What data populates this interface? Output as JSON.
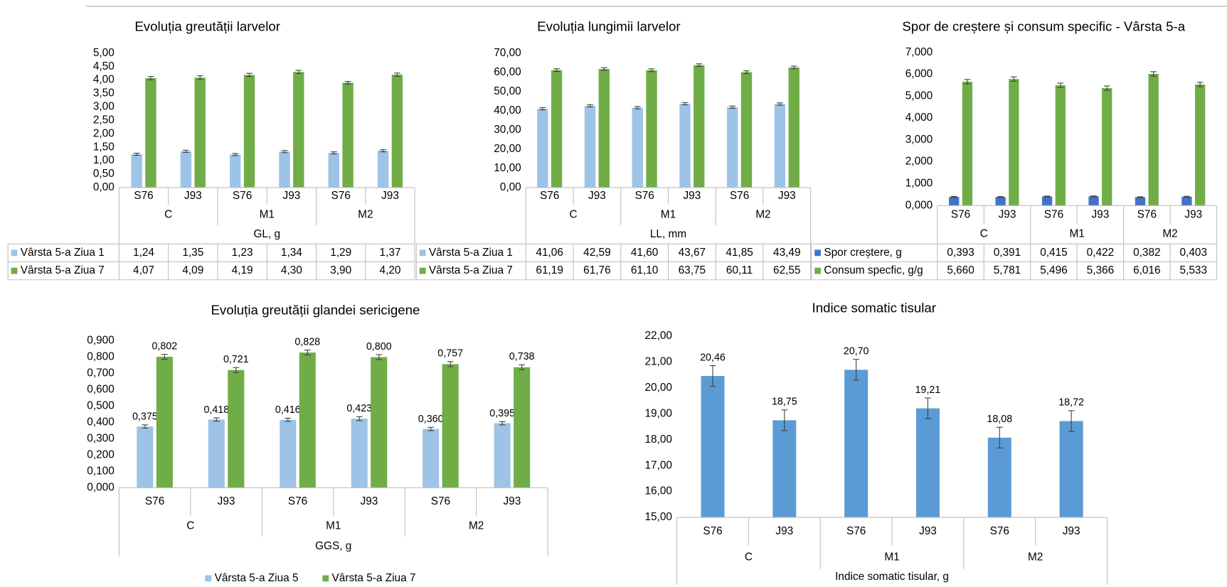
{
  "chart_data": [
    {
      "type": "bar",
      "title": "Evoluția greutății larvelor",
      "x_label": "GL, g",
      "categories": [
        "S76",
        "J93",
        "S76",
        "J93",
        "S76",
        "J93"
      ],
      "groups": [
        "C",
        "M1",
        "M2"
      ],
      "ylim": [
        0,
        5
      ],
      "yticks": [
        {
          "value": 0,
          "label": "0,00"
        },
        {
          "value": 0.5,
          "label": "0,50"
        },
        {
          "value": 1,
          "label": "1,00"
        },
        {
          "value": 1.5,
          "label": "1,50"
        },
        {
          "value": 2,
          "label": "2,00"
        },
        {
          "value": 2.5,
          "label": "2,50"
        },
        {
          "value": 3,
          "label": "3,00"
        },
        {
          "value": 3.5,
          "label": "3,50"
        },
        {
          "value": 4,
          "label": "4,00"
        },
        {
          "value": 4.5,
          "label": "4,50"
        },
        {
          "value": 5,
          "label": "5,00"
        }
      ],
      "series": [
        {
          "name": "Vârsta 5-a Ziua 1",
          "color": "#9dc3e6",
          "values": [
            1.24,
            1.35,
            1.23,
            1.34,
            1.29,
            1.37
          ],
          "value_labels": [
            "1,24",
            "1,35",
            "1,23",
            "1,34",
            "1,29",
            "1,37"
          ],
          "errors": [
            0.04,
            0.04,
            0.04,
            0.04,
            0.04,
            0.04
          ]
        },
        {
          "name": "Vârsta 5-a Ziua 7",
          "color": "#70ad47",
          "values": [
            4.07,
            4.09,
            4.19,
            4.3,
            3.9,
            4.2
          ],
          "value_labels": [
            "4,07",
            "4,09",
            "4,19",
            "4,30",
            "3,90",
            "4,20"
          ],
          "errors": [
            0.06,
            0.07,
            0.06,
            0.06,
            0.05,
            0.06
          ]
        }
      ],
      "data_table": true
    },
    {
      "type": "bar",
      "title": "Evoluția lungimii larvelor",
      "x_label": "LL, mm",
      "categories": [
        "S76",
        "J93",
        "S76",
        "J93",
        "S76",
        "J93"
      ],
      "groups": [
        "C",
        "M1",
        "M2"
      ],
      "ylim": [
        0,
        70
      ],
      "yticks": [
        {
          "value": 0,
          "label": "0,00"
        },
        {
          "value": 10,
          "label": "10,00"
        },
        {
          "value": 20,
          "label": "20,00"
        },
        {
          "value": 30,
          "label": "30,00"
        },
        {
          "value": 40,
          "label": "40,00"
        },
        {
          "value": 50,
          "label": "50,00"
        },
        {
          "value": 60,
          "label": "60,00"
        },
        {
          "value": 70,
          "label": "70,00"
        }
      ],
      "series": [
        {
          "name": "Vârsta 5-a Ziua 1",
          "color": "#9dc3e6",
          "values": [
            41.06,
            42.59,
            41.6,
            43.67,
            41.85,
            43.49
          ],
          "value_labels": [
            "41,06",
            "42,59",
            "41,60",
            "43,67",
            "41,85",
            "43,49"
          ],
          "errors": [
            0.6,
            0.6,
            0.6,
            0.6,
            0.6,
            0.6
          ]
        },
        {
          "name": "Vârsta 5-a Ziua 7",
          "color": "#70ad47",
          "values": [
            61.19,
            61.76,
            61.1,
            63.75,
            60.11,
            62.55
          ],
          "value_labels": [
            "61,19",
            "61,76",
            "61,10",
            "63,75",
            "60,11",
            "62,55"
          ],
          "errors": [
            0.7,
            0.7,
            0.7,
            0.7,
            0.7,
            0.7
          ]
        }
      ],
      "data_table": true
    },
    {
      "type": "bar",
      "title": "Spor de creștere și consum specific - Vârsta 5-a",
      "categories": [
        "S76",
        "J93",
        "S76",
        "J93",
        "S76",
        "J93"
      ],
      "groups": [
        "C",
        "M1",
        "M2"
      ],
      "ylim": [
        0,
        7
      ],
      "yticks": [
        {
          "value": 0,
          "label": "0,000"
        },
        {
          "value": 1,
          "label": "1,000"
        },
        {
          "value": 2,
          "label": "2,000"
        },
        {
          "value": 3,
          "label": "3,000"
        },
        {
          "value": 4,
          "label": "4,000"
        },
        {
          "value": 5,
          "label": "5,000"
        },
        {
          "value": 6,
          "label": "6,000"
        },
        {
          "value": 7,
          "label": "7,000"
        }
      ],
      "series": [
        {
          "name": "Spor creștere, g",
          "color": "#4472c4",
          "values": [
            0.393,
            0.391,
            0.415,
            0.422,
            0.382,
            0.403
          ],
          "value_labels": [
            "0,393",
            "0,391",
            "0,415",
            "0,422",
            "0,382",
            "0,403"
          ],
          "errors": [
            0.02,
            0.02,
            0.02,
            0.02,
            0.02,
            0.02
          ]
        },
        {
          "name": "Consum specfic, g/g",
          "color": "#70ad47",
          "values": [
            5.66,
            5.781,
            5.496,
            5.366,
            6.016,
            5.533
          ],
          "value_labels": [
            "5,660",
            "5,781",
            "5,496",
            "5,366",
            "6,016",
            "5,533"
          ],
          "errors": [
            0.1,
            0.1,
            0.1,
            0.1,
            0.1,
            0.1
          ]
        }
      ],
      "data_table": true
    },
    {
      "type": "bar",
      "title": "Evoluția greutății glandei sericigene",
      "x_label": "GGS, g",
      "categories": [
        "S76",
        "J93",
        "S76",
        "J93",
        "S76",
        "J93"
      ],
      "groups": [
        "C",
        "M1",
        "M2"
      ],
      "ylim": [
        0,
        0.9
      ],
      "yticks": [
        {
          "value": 0,
          "label": "0,000"
        },
        {
          "value": 0.1,
          "label": "0,100"
        },
        {
          "value": 0.2,
          "label": "0,200"
        },
        {
          "value": 0.3,
          "label": "0,300"
        },
        {
          "value": 0.4,
          "label": "0,400"
        },
        {
          "value": 0.5,
          "label": "0,500"
        },
        {
          "value": 0.6,
          "label": "0,600"
        },
        {
          "value": 0.7,
          "label": "0,700"
        },
        {
          "value": 0.8,
          "label": "0,800"
        },
        {
          "value": 0.9,
          "label": "0,900"
        }
      ],
      "series": [
        {
          "name": "Vârsta 5-a Ziua 5",
          "color": "#9dc3e6",
          "values": [
            0.375,
            0.418,
            0.416,
            0.423,
            0.36,
            0.395
          ],
          "value_labels": [
            "0,375",
            "0,418",
            "0,416",
            "0,423",
            "0,360",
            "0,395"
          ],
          "errors": [
            0.01,
            0.01,
            0.01,
            0.012,
            0.01,
            0.01
          ]
        },
        {
          "name": "Vârsta 5-a Ziua 7",
          "color": "#70ad47",
          "values": [
            0.802,
            0.721,
            0.828,
            0.8,
            0.757,
            0.738
          ],
          "value_labels": [
            "0,802",
            "0,721",
            "0,828",
            "0,800",
            "0,757",
            "0,738"
          ],
          "errors": [
            0.015,
            0.015,
            0.015,
            0.015,
            0.015,
            0.015
          ]
        }
      ],
      "legend": "bottom"
    },
    {
      "type": "bar",
      "title": "Indice somatic tisular",
      "x_label": "Indice somatic tisular, g",
      "categories": [
        "S76",
        "J93",
        "S76",
        "J93",
        "S76",
        "J93"
      ],
      "groups": [
        "C",
        "M1",
        "M2"
      ],
      "ylim": [
        15,
        22
      ],
      "yticks": [
        {
          "value": 15,
          "label": "15,00"
        },
        {
          "value": 16,
          "label": "16,00"
        },
        {
          "value": 17,
          "label": "17,00"
        },
        {
          "value": 18,
          "label": "18,00"
        },
        {
          "value": 19,
          "label": "19,00"
        },
        {
          "value": 20,
          "label": "20,00"
        },
        {
          "value": 21,
          "label": "21,00"
        },
        {
          "value": 22,
          "label": "22,00"
        }
      ],
      "series": [
        {
          "name": "Indice somatic tisular",
          "color": "#5b9bd5",
          "values": [
            20.46,
            18.75,
            20.7,
            19.21,
            18.08,
            18.72
          ],
          "value_labels": [
            "20,46",
            "18,75",
            "20,70",
            "19,21",
            "18,08",
            "18,72"
          ],
          "errors": [
            0.4,
            0.4,
            0.4,
            0.4,
            0.4,
            0.4
          ]
        }
      ]
    }
  ]
}
